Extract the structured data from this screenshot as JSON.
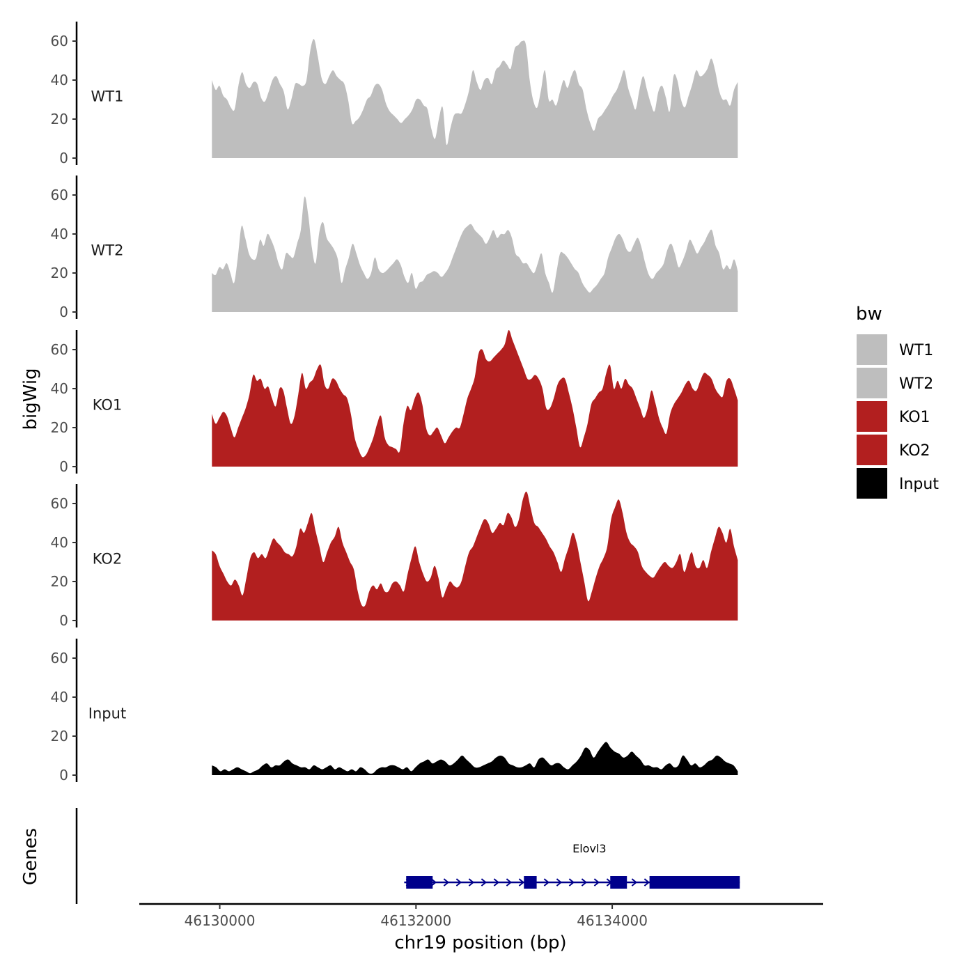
{
  "chart_data": {
    "type": "area",
    "ylabel": "bigWig",
    "xlabel": "chr19 position (bp)",
    "ylim": [
      0,
      70
    ],
    "y_ticks": [
      0,
      20,
      40,
      60
    ],
    "xlim": [
      46129180,
      46136150
    ],
    "x_ticks": [
      46130000,
      46132000,
      46134000
    ],
    "x_tick_labels": [
      "46130000",
      "46132000",
      "46134000"
    ],
    "x_start": 46129920,
    "x_end": 46135280,
    "legend": {
      "title": "bw",
      "position": "right"
    },
    "colors": {
      "WT1": "#bebebe",
      "WT2": "#bebebe",
      "KO1": "#b21f1f",
      "KO2": "#b21f1f",
      "Input": "#000000",
      "gene": "#00008b"
    },
    "series": [
      {
        "name": "WT1",
        "values": [
          40,
          35,
          37,
          32,
          30,
          26,
          25,
          37,
          44,
          38,
          36,
          39,
          38,
          31,
          29,
          34,
          40,
          42,
          38,
          34,
          25,
          30,
          38,
          38,
          37,
          40,
          55,
          61,
          52,
          41,
          38,
          42,
          45,
          42,
          40,
          38,
          30,
          18,
          19,
          21,
          25,
          30,
          32,
          37,
          38,
          35,
          28,
          24,
          22,
          20,
          18,
          20,
          22,
          25,
          30,
          30,
          27,
          25,
          15,
          10,
          20,
          26,
          7,
          15,
          22,
          23,
          23,
          28,
          35,
          45,
          39,
          35,
          40,
          41,
          38,
          45,
          47,
          50,
          48,
          46,
          56,
          58,
          60,
          58,
          40,
          29,
          26,
          35,
          45,
          30,
          30,
          27,
          34,
          40,
          36,
          42,
          45,
          38,
          35,
          25,
          18,
          14,
          20,
          22,
          25,
          28,
          32,
          35,
          40,
          45,
          36,
          30,
          25,
          35,
          42,
          35,
          28,
          24,
          34,
          37,
          31,
          24,
          42,
          40,
          30,
          26,
          32,
          38,
          45,
          42,
          43,
          46,
          51,
          45,
          35,
          30,
          30,
          27,
          35,
          39
        ]
      },
      {
        "name": "WT2",
        "values": [
          20,
          19,
          23,
          22,
          25,
          20,
          15,
          28,
          44,
          38,
          30,
          27,
          28,
          37,
          34,
          40,
          37,
          32,
          25,
          22,
          30,
          29,
          28,
          35,
          42,
          59,
          50,
          33,
          25,
          41,
          46,
          38,
          35,
          32,
          27,
          15,
          22,
          28,
          35,
          30,
          24,
          20,
          17,
          20,
          28,
          22,
          20,
          21,
          23,
          25,
          27,
          24,
          18,
          15,
          20,
          12,
          15,
          16,
          19,
          20,
          21,
          20,
          18,
          20,
          23,
          28,
          33,
          38,
          42,
          44,
          45,
          42,
          40,
          38,
          35,
          38,
          42,
          38,
          40,
          40,
          42,
          38,
          30,
          28,
          25,
          25,
          22,
          20,
          25,
          30,
          20,
          15,
          10,
          20,
          30,
          30,
          28,
          25,
          22,
          20,
          15,
          12,
          10,
          12,
          14,
          17,
          20,
          28,
          33,
          38,
          40,
          37,
          32,
          31,
          35,
          38,
          33,
          25,
          19,
          17,
          20,
          22,
          25,
          32,
          35,
          30,
          23,
          26,
          31,
          37,
          34,
          30,
          33,
          36,
          40,
          42,
          34,
          30,
          22,
          24,
          22,
          27,
          21
        ]
      },
      {
        "name": "KO1",
        "values": [
          27,
          22,
          25,
          28,
          26,
          20,
          15,
          20,
          25,
          30,
          37,
          47,
          44,
          45,
          40,
          41,
          35,
          31,
          40,
          39,
          30,
          22,
          26,
          37,
          48,
          40,
          43,
          45,
          50,
          52,
          42,
          40,
          45,
          44,
          40,
          37,
          35,
          27,
          15,
          9,
          5,
          6,
          10,
          15,
          22,
          26,
          15,
          11,
          10,
          9,
          8,
          22,
          31,
          29,
          35,
          38,
          32,
          20,
          16,
          18,
          20,
          16,
          12,
          15,
          18,
          20,
          20,
          27,
          35,
          40,
          46,
          58,
          60,
          55,
          54,
          56,
          58,
          60,
          63,
          70,
          65,
          60,
          55,
          50,
          45,
          45,
          47,
          45,
          40,
          30,
          30,
          35,
          42,
          45,
          45,
          38,
          30,
          20,
          10,
          15,
          22,
          32,
          35,
          38,
          40,
          48,
          52,
          40,
          44,
          40,
          45,
          42,
          40,
          35,
          30,
          25,
          30,
          39,
          33,
          25,
          20,
          17,
          27,
          32,
          35,
          38,
          42,
          44,
          40,
          39,
          44,
          48,
          47,
          45,
          40,
          37,
          36,
          44,
          45,
          40,
          34
        ]
      },
      {
        "name": "KO2",
        "values": [
          36,
          34,
          28,
          24,
          20,
          18,
          21,
          18,
          13,
          22,
          32,
          35,
          32,
          34,
          32,
          37,
          42,
          40,
          38,
          35,
          34,
          33,
          38,
          47,
          45,
          50,
          55,
          46,
          38,
          30,
          35,
          40,
          43,
          48,
          40,
          35,
          30,
          26,
          15,
          8,
          8,
          15,
          18,
          16,
          19,
          15,
          15,
          19,
          20,
          18,
          15,
          24,
          32,
          38,
          30,
          24,
          20,
          22,
          28,
          22,
          12,
          16,
          20,
          18,
          17,
          20,
          28,
          35,
          38,
          43,
          48,
          52,
          50,
          45,
          47,
          50,
          49,
          55,
          53,
          48,
          52,
          62,
          66,
          58,
          50,
          48,
          45,
          42,
          38,
          35,
          30,
          25,
          32,
          38,
          45,
          40,
          30,
          20,
          10,
          15,
          22,
          28,
          32,
          38,
          52,
          58,
          62,
          55,
          45,
          40,
          38,
          35,
          28,
          25,
          23,
          22,
          25,
          28,
          30,
          28,
          27,
          30,
          34,
          25,
          30,
          35,
          28,
          27,
          31,
          27,
          35,
          42,
          48,
          45,
          40,
          47,
          38,
          31
        ]
      },
      {
        "name": "Input",
        "values": [
          5,
          4,
          2,
          3,
          2,
          3,
          4,
          3,
          2,
          1,
          2,
          3,
          5,
          6,
          4,
          5,
          5,
          7,
          8,
          6,
          5,
          4,
          4,
          3,
          5,
          4,
          3,
          4,
          5,
          3,
          4,
          3,
          2,
          3,
          2,
          4,
          3,
          1,
          1,
          3,
          4,
          4,
          5,
          5,
          4,
          3,
          4,
          2,
          4,
          6,
          7,
          8,
          6,
          7,
          8,
          7,
          5,
          6,
          8,
          10,
          8,
          6,
          4,
          4,
          5,
          6,
          7,
          9,
          10,
          9,
          6,
          5,
          4,
          4,
          5,
          6,
          4,
          8,
          9,
          7,
          5,
          6,
          6,
          4,
          3,
          5,
          7,
          10,
          14,
          13,
          9,
          12,
          15,
          17,
          14,
          12,
          11,
          9,
          10,
          12,
          10,
          8,
          5,
          5,
          4,
          4,
          3,
          5,
          6,
          4,
          5,
          10,
          8,
          5,
          6,
          4,
          5,
          7,
          8,
          10,
          9,
          7,
          6,
          5,
          2
        ]
      }
    ],
    "genes": [
      {
        "name": "Elovl3",
        "strand": "+",
        "start": 46131880,
        "end": 46135300,
        "exons": [
          [
            46131900,
            46132170
          ],
          [
            46133100,
            46133230
          ],
          [
            46133980,
            46134150
          ],
          [
            46134380,
            46135300
          ]
        ]
      }
    ],
    "gene_track_label": "Genes"
  }
}
